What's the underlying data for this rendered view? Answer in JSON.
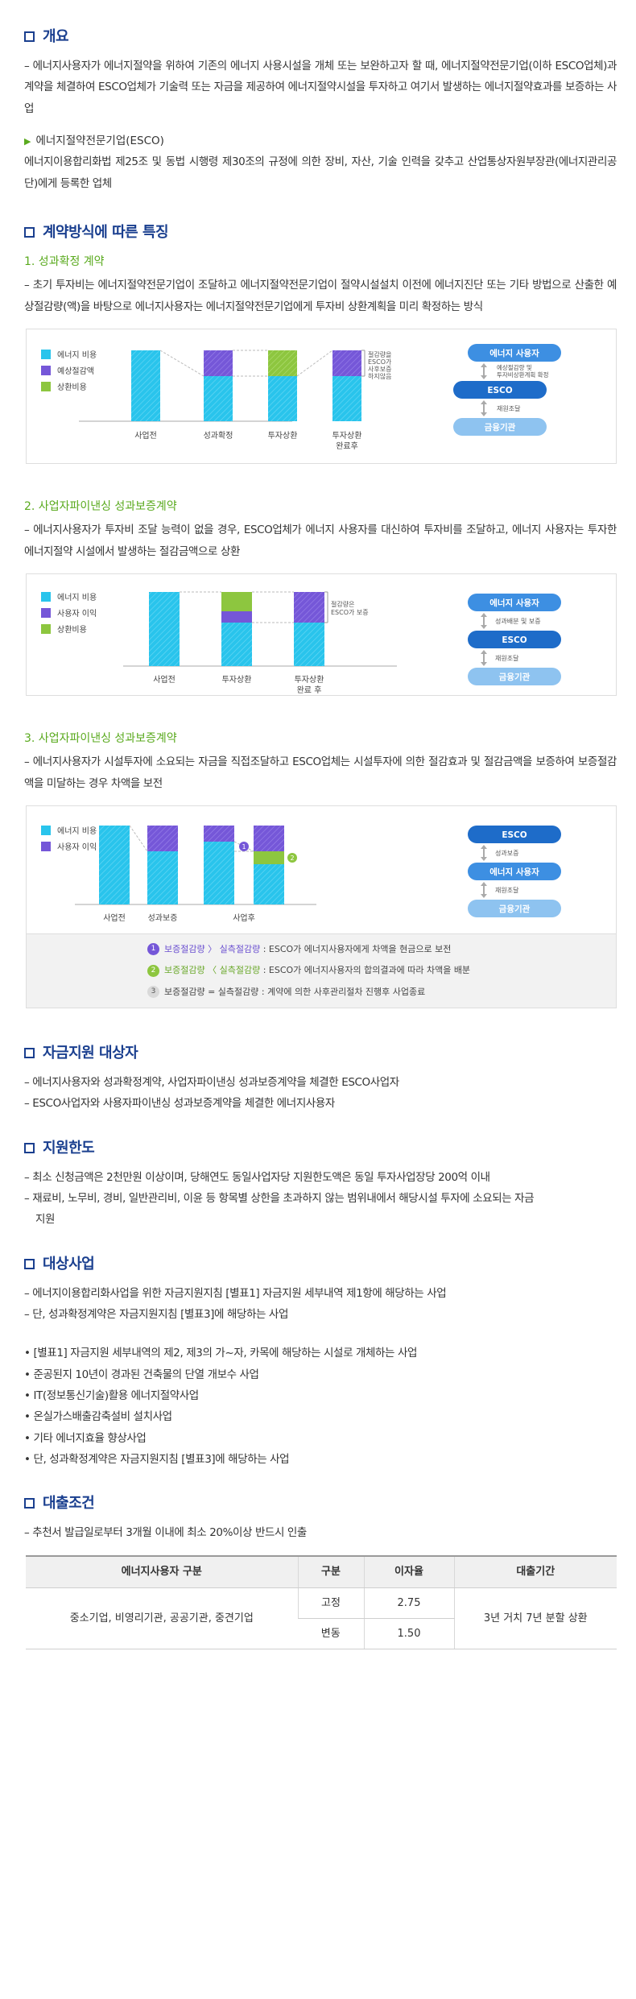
{
  "overview": {
    "title": "개요",
    "line1": "– 에너지사용자가 에너지절약을 위하여 기존의 에너지 사용시설을 개체 또는 보완하고자 할 때, 에너지절약전문기업(이하 ESCO업체)과 계약을 체결하여 ESCO업체가 기술력 또는 자금을 제공하여 에너지절약시설을 투자하고 여기서 발생하는 에너지절약효과를 보증하는 사업",
    "esco_title": "에너지절약전문기업(ESCO)",
    "esco_desc": "에너지이용합리화법 제25조 및 동법 시행령 제30조의 규정에 의한 장비, 자산, 기술 인력을 갖추고 산업통상자원부장관(에너지관리공단)에게 등록한 업체"
  },
  "features": {
    "title": "계약방식에 따른 특징",
    "s1": {
      "title": "1. 성과확정 계약",
      "desc": "– 초기 투자비는 에너지절약전문기업이 조달하고 에너지절약전문기업이 절약시설설치 이전에 에너지진단 또는 기타 방법으로 산출한 예상절감량(액)을 바탕으로 에너지사용자는 에너지절약전문기업에게 투자비 상환계획을 미리 확정하는 방식",
      "legend": [
        "에너지 비용",
        "예상절감액",
        "상환비용"
      ],
      "xlabels": [
        "사업전",
        "성과확정",
        "투자상환",
        "투자상환"
      ],
      "xlabel4b": "완료후",
      "annot": [
        "절감량을",
        "ESCO가",
        "사후보증",
        "하지않음"
      ],
      "flow": [
        "에너지 사용자",
        "ESCO",
        "금융기관"
      ],
      "flow_note1a": "예상절감량 및",
      "flow_note1b": "투자비상환계획 확정",
      "flow_note2": "재원조달"
    },
    "s2": {
      "title": "2. 사업자파이낸싱 성과보증계약",
      "desc": "– 에너지사용자가 투자비 조달 능력이 없을 경우, ESCO업체가 에너지 사용자를 대신하여 투자비를 조달하고, 에너지 사용자는 투자한 에너지절약 시설에서 발생하는 절감금액으로 상환",
      "legend": [
        "에너지 비용",
        "사용자 이익",
        "상환비용"
      ],
      "xlabels": [
        "사업전",
        "투자상환",
        "투자상환"
      ],
      "xlabel3b": "완료 후",
      "annot": [
        "절감량은",
        "ESCO가 보증"
      ],
      "flow": [
        "에너지 사용자",
        "ESCO",
        "금융기관"
      ],
      "flow_note1": "성과배분 및 보증",
      "flow_note2": "재원조달"
    },
    "s3": {
      "title": "3. 사업자파이낸싱 성과보증계약",
      "desc": "– 에너지사용자가 시설투자에 소요되는 자금을 직접조달하고 ESCO업체는 시설투자에 의한 절감효과 및 절감금액을 보증하여 보증절감액을 미달하는 경우 차액을 보전",
      "legend": [
        "에너지 비용",
        "사용자 이익"
      ],
      "xlabels": [
        "사업전",
        "성과보증",
        "사업후"
      ],
      "flow": [
        "ESCO",
        "에너지 사용자",
        "금융기관"
      ],
      "flow_note1": "성과보증",
      "flow_note2": "재원조달",
      "markers": [
        "1",
        "2",
        "3"
      ],
      "notes": [
        {
          "a": "보증절감량 〉 실측절감량",
          "b": " : ESCO가 에너지사용자에게 차액을 현금으로 보전"
        },
        {
          "a": "보증절감량 〈 실측절감량",
          "b": " : ESCO가 에너지사용자의 합의결과에 따라 차액을 배분"
        },
        {
          "a": "보증절감량 = 실측절감량",
          "b": " : 계약에 의한 사후관리절차 진행후 사업종료"
        }
      ]
    }
  },
  "target": {
    "title": "자금지원 대상자",
    "items": [
      "– 에너지사용자와 성과확정계약, 사업자파이낸싱 성과보증계약을 체결한 ESCO사업자",
      "– ESCO사업자와 사용자파이낸싱 성과보증계약을 체결한 에너지사용자"
    ]
  },
  "limit": {
    "title": "지원한도",
    "items": [
      "– 최소 신청금액은 2천만원 이상이며, 당해연도 동일사업자당 지원한도액은 동일 투자사업장당 200억 이내",
      "– 재료비, 노무비, 경비, 일반관리비, 이윤 등 항목별 상한을 초과하지 않는 범위내에서 해당시설 투자에 소요되는 자금",
      "지원"
    ]
  },
  "projects": {
    "title": "대상사업",
    "items": [
      "– 에너지이용합리화사업을 위한 자금지원지침 [별표1] 자금지원 세부내역 제1항에 해당하는 사업",
      "– 단, 성과확정계약은 자금지원지침 [별표3]에 해당하는 사업"
    ],
    "bullets": [
      "• [별표1] 자금지원 세부내역의 제2, 제3의 가~자, 카목에 해당하는 시설로 개체하는 사업",
      "• 준공된지 10년이 경과된 건축물의 단열 개보수 사업",
      "• IT(정보통신기술)활용 에너지절약사업",
      "• 온실가스배출감축설비 설치사업",
      "• 기타 에너지효율 향상사업",
      "• 단, 성과확정계약은 자금지원지침 [별표3]에 해당하는 사업"
    ]
  },
  "loan": {
    "title": "대출조건",
    "item": "– 추천서 발급일로부터 3개월 이내에 최소 20%이상 반드시 인출",
    "headers": [
      "에너지사용자 구분",
      "구분",
      "이자율",
      "대출기간"
    ],
    "group": "중소기업, 비영리기관, 공공기관, 중견기업",
    "rows": [
      {
        "type": "고정",
        "rate": "2.75"
      },
      {
        "type": "변동",
        "rate": "1.50"
      }
    ],
    "period": "3년 거치 7년 분할 상환"
  },
  "colors": {
    "energy": "#29c4ec",
    "saving": "#7557d8",
    "repay": "#8dc63f",
    "navy": "#1a3f8f",
    "esco": "#1e6cc9",
    "user": "#3d8fe2",
    "bank": "#8ec3f0"
  }
}
